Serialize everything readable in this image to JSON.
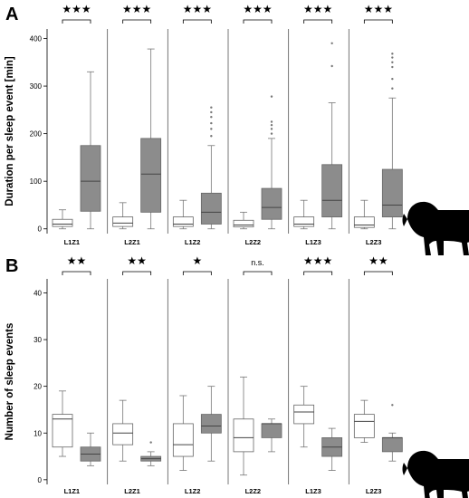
{
  "chart_data": [
    {
      "type": "boxplot",
      "panel_label": "A",
      "ylabel": "Duration per sleep event [min]",
      "ylim": [
        -10,
        420
      ],
      "yticks": [
        0,
        100,
        200,
        300,
        400
      ],
      "categories": [
        "L1Z1",
        "L2Z1",
        "L1Z2",
        "L2Z2",
        "L1Z3",
        "L2Z3"
      ],
      "significance": [
        "★★★",
        "★★★",
        "★★★",
        "★★★",
        "★★★",
        "★★★"
      ],
      "series": [
        {
          "color": "#ffffff",
          "boxes": [
            {
              "min": 0,
              "q1": 5,
              "median": 10,
              "q3": 20,
              "max": 40,
              "outliers": []
            },
            {
              "min": 0,
              "q1": 5,
              "median": 12,
              "q3": 25,
              "max": 55,
              "outliers": []
            },
            {
              "min": 0,
              "q1": 5,
              "median": 10,
              "q3": 25,
              "max": 60,
              "outliers": []
            },
            {
              "min": 0,
              "q1": 4,
              "median": 8,
              "q3": 18,
              "max": 35,
              "outliers": []
            },
            {
              "min": 0,
              "q1": 5,
              "median": 10,
              "q3": 25,
              "max": 60,
              "outliers": []
            },
            {
              "min": 0,
              "q1": 3,
              "median": 8,
              "q3": 25,
              "max": 60,
              "outliers": []
            }
          ]
        },
        {
          "color": "#8c8c8c",
          "boxes": [
            {
              "min": 0,
              "q1": 37,
              "median": 100,
              "q3": 175,
              "max": 330,
              "outliers": []
            },
            {
              "min": 0,
              "q1": 35,
              "median": 115,
              "q3": 190,
              "max": 378,
              "outliers": []
            },
            {
              "min": 0,
              "q1": 10,
              "median": 35,
              "q3": 75,
              "max": 175,
              "outliers": [
                195,
                210,
                222,
                235,
                245,
                255
              ]
            },
            {
              "min": 0,
              "q1": 20,
              "median": 45,
              "q3": 85,
              "max": 190,
              "outliers": [
                200,
                210,
                218,
                225,
                278
              ]
            },
            {
              "min": 0,
              "q1": 25,
              "median": 60,
              "q3": 135,
              "max": 265,
              "outliers": [
                342,
                390
              ]
            },
            {
              "min": 0,
              "q1": 25,
              "median": 50,
              "q3": 125,
              "max": 275,
              "outliers": [
                295,
                315,
                340,
                350,
                360,
                368
              ]
            }
          ]
        }
      ],
      "grid": false
    },
    {
      "type": "boxplot",
      "panel_label": "B",
      "ylabel": "Number of sleep events",
      "ylim": [
        -1,
        43
      ],
      "yticks": [
        0,
        10,
        20,
        30,
        40
      ],
      "categories": [
        "L1Z1",
        "L2Z1",
        "L1Z2",
        "L2Z2",
        "L1Z3",
        "L2Z3"
      ],
      "significance": [
        "★★",
        "★★",
        "★",
        "n.s.",
        "★★★",
        "★★"
      ],
      "series": [
        {
          "color": "#ffffff",
          "boxes": [
            {
              "min": 5,
              "q1": 7,
              "median": 13,
              "q3": 14,
              "max": 19,
              "outliers": []
            },
            {
              "min": 4,
              "q1": 7.5,
              "median": 10,
              "q3": 12,
              "max": 17,
              "outliers": []
            },
            {
              "min": 2,
              "q1": 5,
              "median": 7.5,
              "q3": 12,
              "max": 18,
              "outliers": []
            },
            {
              "min": 1,
              "q1": 6,
              "median": 9,
              "q3": 13,
              "max": 22,
              "outliers": []
            },
            {
              "min": 7,
              "q1": 12,
              "median": 14.5,
              "q3": 16,
              "max": 20,
              "outliers": []
            },
            {
              "min": 8,
              "q1": 9,
              "median": 12.5,
              "q3": 14,
              "max": 17,
              "outliers": []
            }
          ]
        },
        {
          "color": "#8c8c8c",
          "boxes": [
            {
              "min": 3,
              "q1": 4,
              "median": 5.5,
              "q3": 7,
              "max": 10,
              "outliers": []
            },
            {
              "min": 3,
              "q1": 4,
              "median": 4.5,
              "q3": 5,
              "max": 6,
              "outliers": [
                8
              ]
            },
            {
              "min": 4,
              "q1": 10,
              "median": 11.5,
              "q3": 14,
              "max": 20,
              "outliers": []
            },
            {
              "min": 6,
              "q1": 9,
              "median": 12,
              "q3": 12,
              "max": 13,
              "outliers": []
            },
            {
              "min": 2,
              "q1": 5,
              "median": 7,
              "q3": 9,
              "max": 11,
              "outliers": []
            },
            {
              "min": 4,
              "q1": 6,
              "median": 9,
              "q3": 9,
              "max": 10,
              "outliers": [
                16
              ]
            }
          ]
        }
      ],
      "grid": false
    }
  ]
}
